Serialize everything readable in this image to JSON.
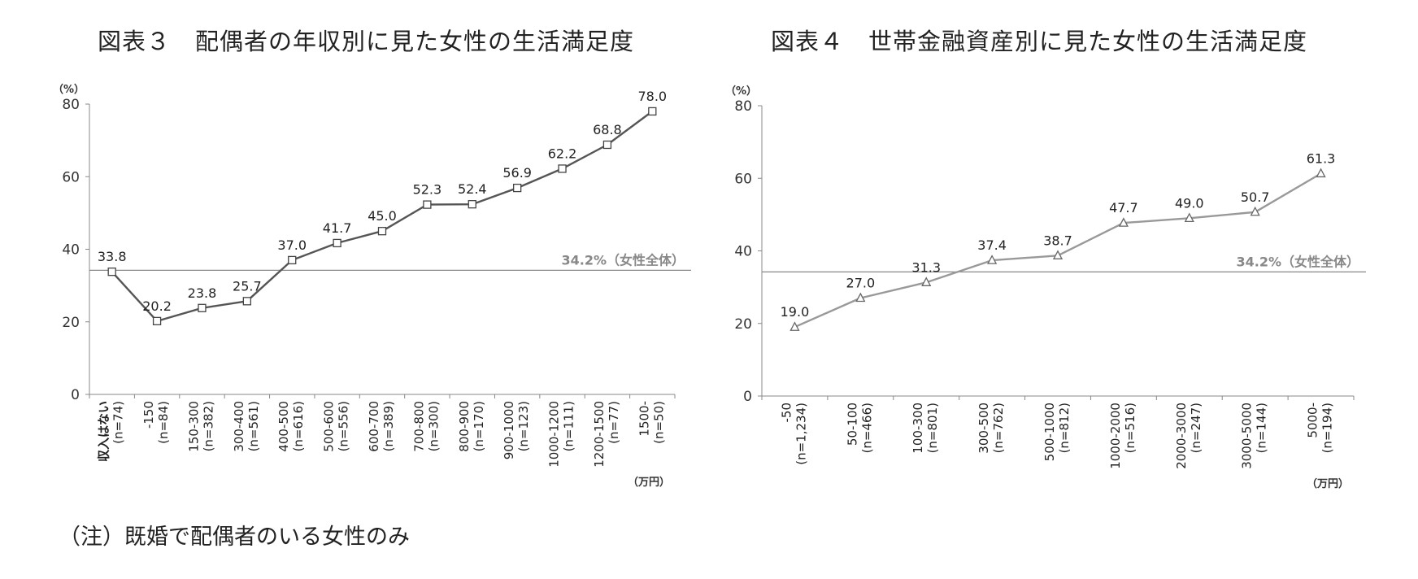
{
  "chart_data": [
    {
      "type": "line",
      "title": "図表３　配偶者の年収別に見た女性の生活満足度",
      "ylabel": "（%）",
      "xunit": "（万円）",
      "ylim": [
        0,
        80
      ],
      "yticks": [
        0,
        20,
        40,
        60,
        80
      ],
      "categories": [
        [
          "収入はない",
          "(n=74)"
        ],
        [
          "-150",
          "(n=84)"
        ],
        [
          "150-300",
          "(n=382)"
        ],
        [
          "300-400",
          "(n=561)"
        ],
        [
          "400-500",
          "(n=616)"
        ],
        [
          "500-600",
          "(n=556)"
        ],
        [
          "600-700",
          "(n=389)"
        ],
        [
          "700-800",
          "(n=300)"
        ],
        [
          "800-900",
          "(n=170)"
        ],
        [
          "900-1000",
          "(n=123)"
        ],
        [
          "1000-1200",
          "(n=111)"
        ],
        [
          "1200-1500",
          "(n=77)"
        ],
        [
          "1500-",
          "(n=50)"
        ]
      ],
      "series": [
        {
          "values": [
            33.8,
            20.2,
            23.8,
            25.7,
            37.0,
            41.7,
            45.0,
            52.3,
            52.4,
            56.9,
            62.2,
            68.8,
            78.0
          ],
          "labels": [
            "33.8",
            "20.2",
            "23.8",
            "25.7",
            "37.0",
            "41.7",
            "45.0",
            "52.3",
            "52.4",
            "56.9",
            "62.2",
            "68.8",
            "78.0"
          ],
          "marker": "square",
          "color": "#555555"
        }
      ],
      "reference": {
        "value": 34.2,
        "label": "34.2%（女性全体）",
        "color": "#888888"
      },
      "grid": false
    },
    {
      "type": "line",
      "title": "図表４　世帯金融資産別に見た女性の生活満足度",
      "ylabel": "（%）",
      "xunit": "（万円）",
      "ylim": [
        0,
        80
      ],
      "yticks": [
        0,
        20,
        40,
        60,
        80
      ],
      "categories": [
        [
          "-50",
          "(n=1,234)"
        ],
        [
          "50-100",
          "(n=466)"
        ],
        [
          "100-300",
          "(n=801)"
        ],
        [
          "300-500",
          "(n=762)"
        ],
        [
          "500-1000",
          "(n=812)"
        ],
        [
          "1000-2000",
          "(n=516)"
        ],
        [
          "2000-3000",
          "(n=247)"
        ],
        [
          "3000-5000",
          "(n=144)"
        ],
        [
          "5000-",
          "(n=194)"
        ]
      ],
      "series": [
        {
          "values": [
            19.0,
            27.0,
            31.3,
            37.4,
            38.7,
            47.7,
            49.0,
            50.7,
            61.3
          ],
          "labels": [
            "19.0",
            "27.0",
            "31.3",
            "37.4",
            "38.7",
            "47.7",
            "49.0",
            "50.7",
            "61.3"
          ],
          "marker": "triangle",
          "color": "#999999"
        }
      ],
      "reference": {
        "value": 34.2,
        "label": "34.2%（女性全体）",
        "color": "#888888"
      },
      "grid": false
    }
  ],
  "note": "（注）既婚で配偶者のいる女性のみ"
}
